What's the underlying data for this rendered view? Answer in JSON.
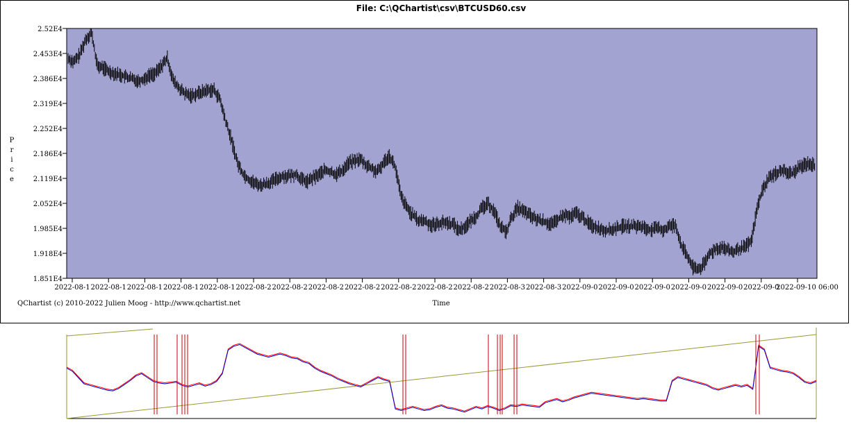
{
  "footer": {
    "credit": "QChartist (c) 2010-2022 Julien Moog - http://www.qchartist.net"
  },
  "chart_data": {
    "type": "line",
    "title": "File: C:\\QChartist\\csv\\BTCUSD60.csv",
    "xlabel": "Time",
    "ylabel": "Price",
    "ylim": [
      18510,
      25200
    ],
    "y_ticks": [
      "2.52E4",
      "2.453E4",
      "2.386E4",
      "2.319E4",
      "2.252E4",
      "2.186E4",
      "2.119E4",
      "2.052E4",
      "1.985E4",
      "1.918E4",
      "1.851E4"
    ],
    "x_ticks": [
      "2022-08-1",
      "2022-08-1",
      "2022-08-1",
      "2022-08-1",
      "2022-08-1",
      "2022-08-2",
      "2022-08-2",
      "2022-08-2",
      "2022-08-2",
      "2022-08-2",
      "2022-08-2",
      "2022-08-2",
      "2022-08-3",
      "2022-08-3",
      "2022-09-0",
      "2022-09-0",
      "2022-09-0",
      "2022-09-0",
      "2022-09-0",
      "2022-09-0",
      "2022-09-10 06:00"
    ],
    "background_color": "#a3a3d1",
    "series": [
      {
        "color": "#000000",
        "values": [
          24400,
          24300,
          24500,
          24900,
          25100,
          24200,
          24150,
          24050,
          24000,
          23950,
          23900,
          23850,
          23800,
          23850,
          23950,
          24000,
          24200,
          24400,
          23800,
          23600,
          23450,
          23400,
          23450,
          23500,
          23550,
          23550,
          23300,
          22700,
          22200,
          21600,
          21300,
          21150,
          21050,
          21000,
          21050,
          21100,
          21200,
          21250,
          21250,
          21300,
          21150,
          21100,
          21200,
          21300,
          21400,
          21350,
          21300,
          21400,
          21600,
          21650,
          21700,
          21550,
          21450,
          21350,
          21600,
          21800,
          21500,
          20700,
          20400,
          20200,
          20050,
          20050,
          19950,
          19950,
          20000,
          20000,
          19950,
          19800,
          19900,
          20050,
          20200,
          20400,
          20500,
          20300,
          19900,
          19750,
          20150,
          20400,
          20300,
          20200,
          20100,
          20050,
          20000,
          19950,
          20100,
          20200,
          20150,
          20250,
          20150,
          20000,
          19900,
          19850,
          19800,
          19800,
          19850,
          19900,
          19900,
          19900,
          19900,
          19850,
          19800,
          19850,
          19800,
          19900,
          19950,
          19400,
          19100,
          18800,
          18750,
          18900,
          19200,
          19300,
          19350,
          19250,
          19200,
          19300,
          19350,
          19500,
          20400,
          20900,
          21200,
          21300,
          21400,
          21350,
          21300,
          21450,
          21550,
          21600,
          21500
        ]
      }
    ],
    "indicator": {
      "series_colors": [
        "#ff0000",
        "#0000cc"
      ],
      "trend_color": "#999933",
      "values": [
        0.62,
        0.58,
        0.5,
        0.42,
        0.4,
        0.38,
        0.36,
        0.34,
        0.33,
        0.36,
        0.41,
        0.46,
        0.52,
        0.55,
        0.5,
        0.45,
        0.43,
        0.42,
        0.43,
        0.44,
        0.4,
        0.38,
        0.4,
        0.42,
        0.39,
        0.41,
        0.45,
        0.55,
        0.85,
        0.9,
        0.92,
        0.88,
        0.84,
        0.8,
        0.78,
        0.76,
        0.78,
        0.8,
        0.78,
        0.75,
        0.74,
        0.7,
        0.68,
        0.62,
        0.58,
        0.55,
        0.52,
        0.48,
        0.45,
        0.42,
        0.4,
        0.38,
        0.42,
        0.46,
        0.5,
        0.47,
        0.45,
        0.1,
        0.08,
        0.1,
        0.12,
        0.1,
        0.08,
        0.09,
        0.12,
        0.14,
        0.11,
        0.1,
        0.08,
        0.06,
        0.09,
        0.12,
        0.1,
        0.13,
        0.11,
        0.08,
        0.1,
        0.14,
        0.13,
        0.15,
        0.14,
        0.13,
        0.12,
        0.18,
        0.2,
        0.22,
        0.19,
        0.21,
        0.24,
        0.26,
        0.28,
        0.3,
        0.29,
        0.28,
        0.27,
        0.26,
        0.25,
        0.24,
        0.23,
        0.22,
        0.23,
        0.22,
        0.21,
        0.2,
        0.2,
        0.45,
        0.5,
        0.48,
        0.46,
        0.44,
        0.42,
        0.4,
        0.36,
        0.34,
        0.36,
        0.38,
        0.4,
        0.38,
        0.4,
        0.35,
        0.9,
        0.85,
        0.62,
        0.6,
        0.58,
        0.57,
        0.55,
        0.5,
        0.44,
        0.42,
        0.45
      ]
    }
  }
}
